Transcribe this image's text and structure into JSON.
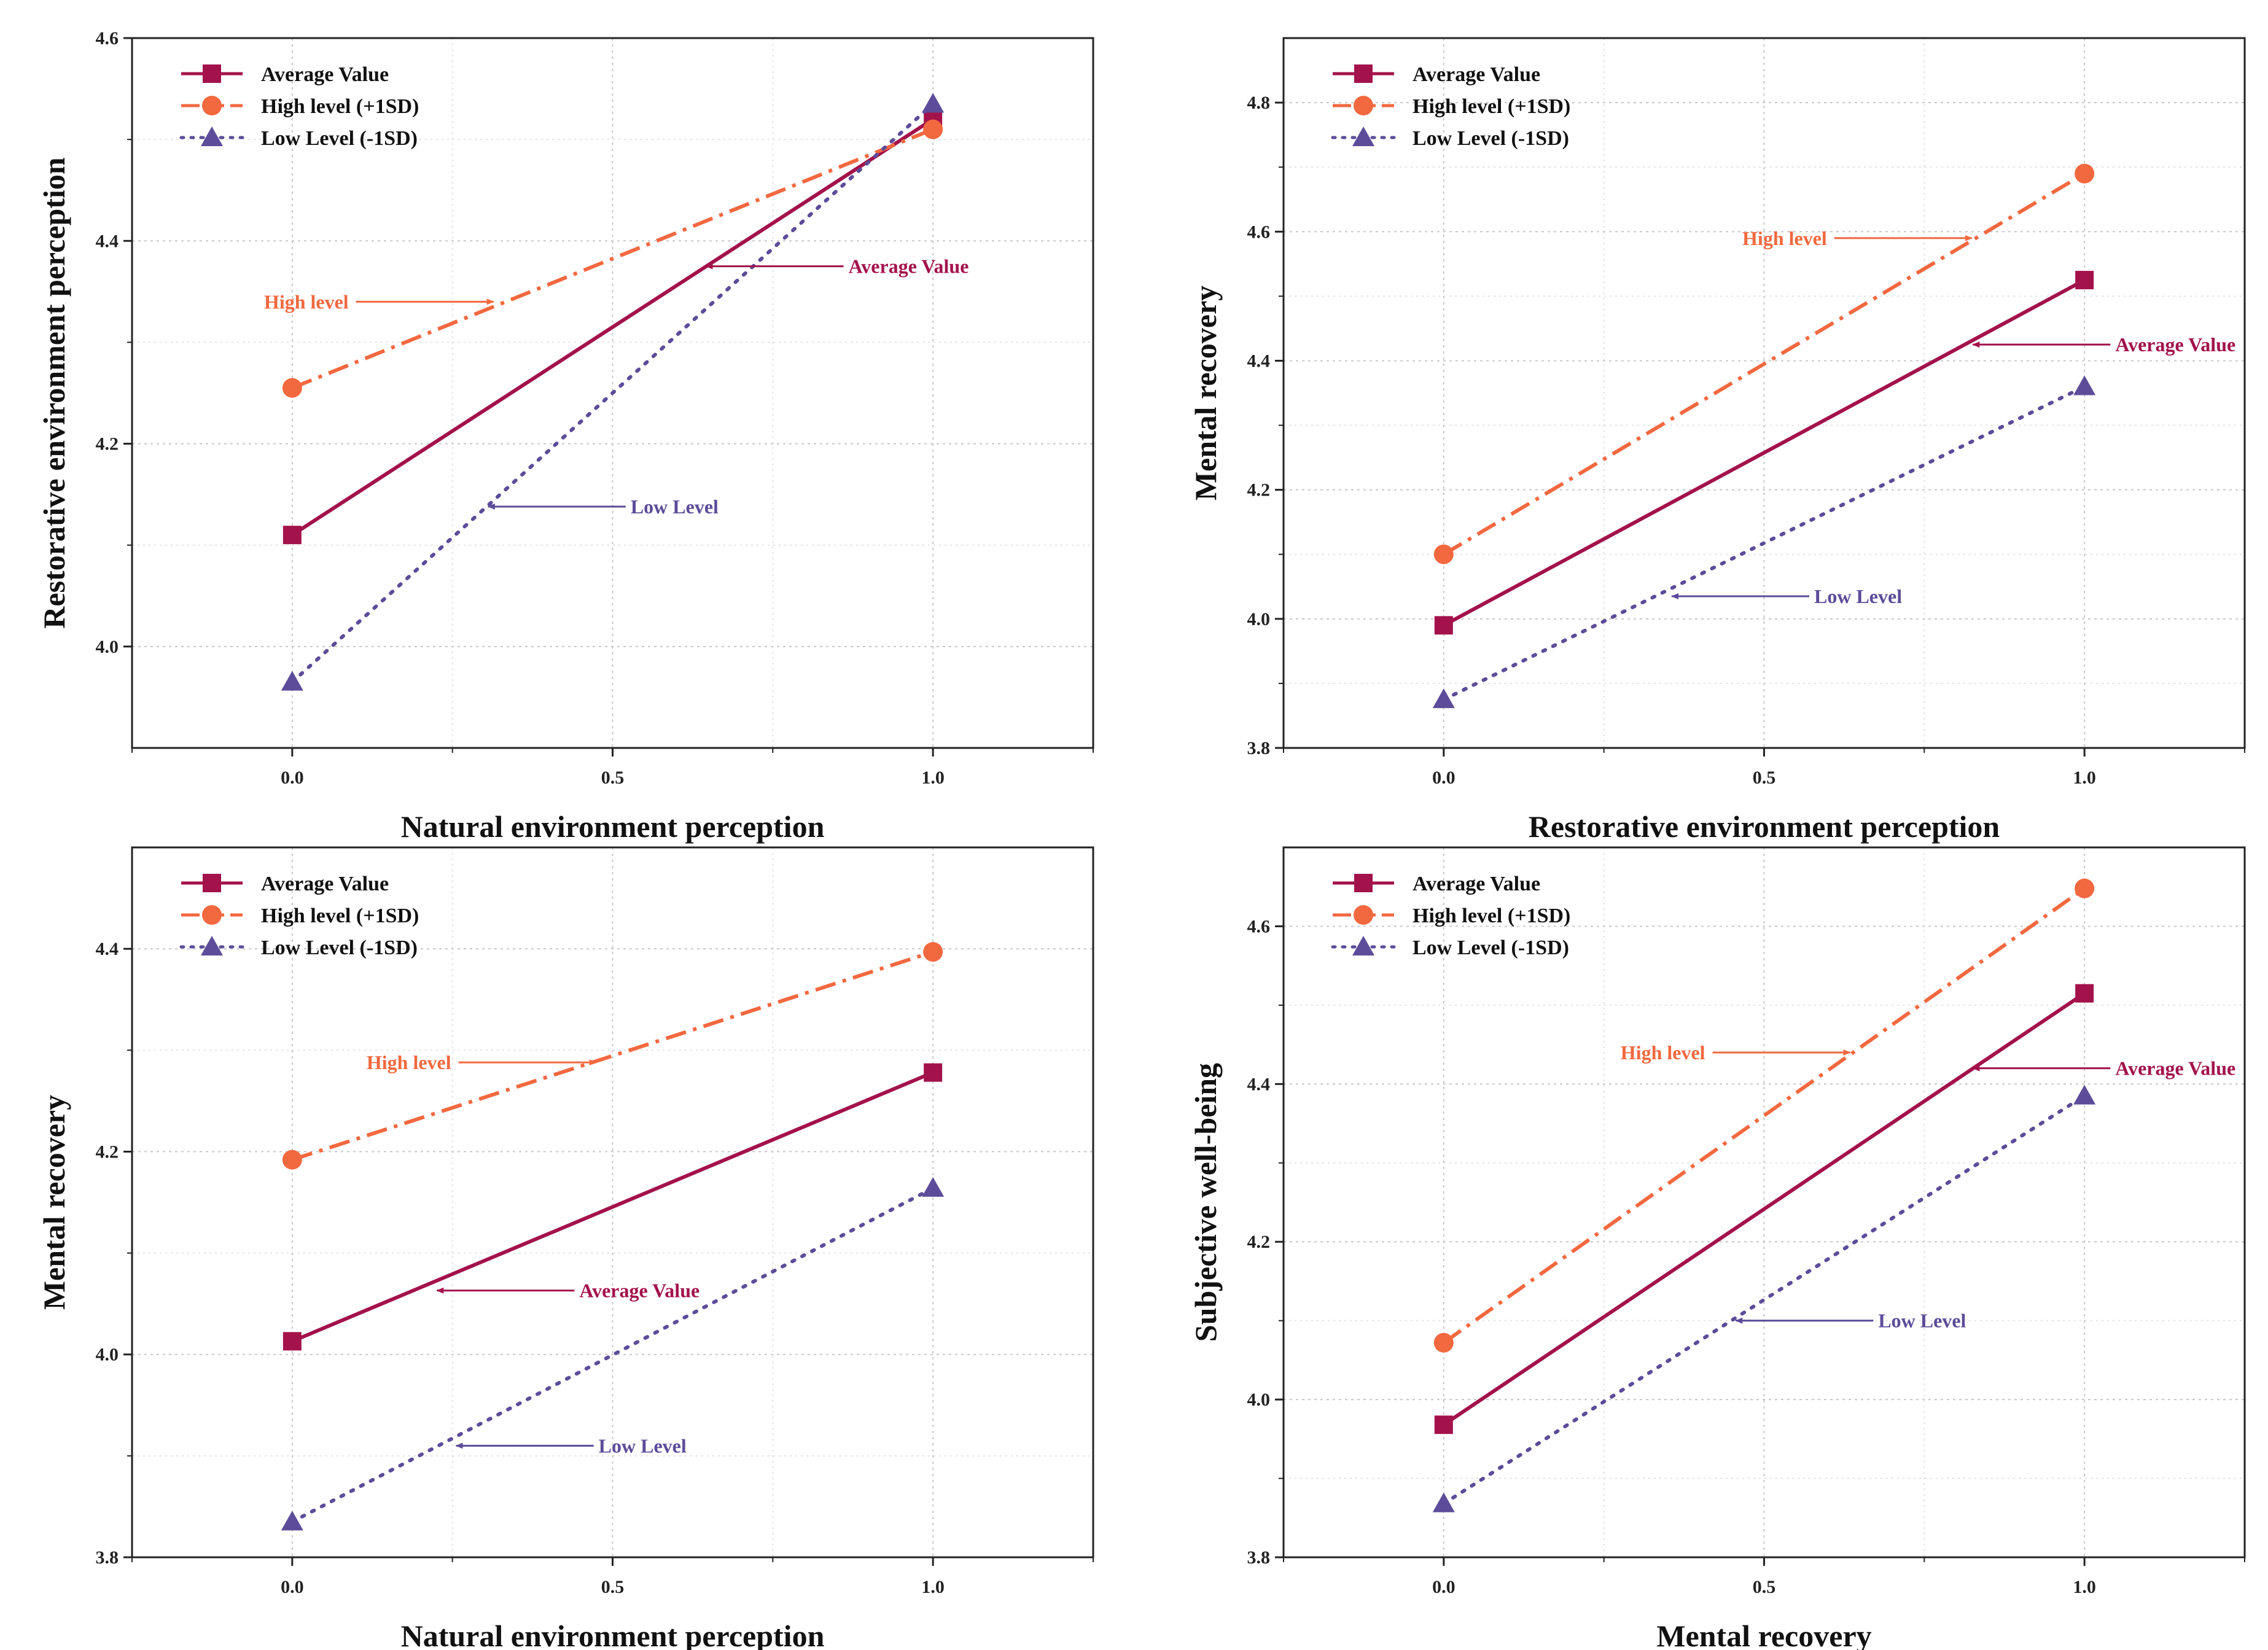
{
  "colors": {
    "average": "#a3124b",
    "high": "#f2683f",
    "low": "#5c4c99"
  },
  "chart_data": [
    {
      "type": "line",
      "xlabel": "Natural environment perception",
      "ylabel": "Restorative environment perception",
      "xlim": [
        -0.25,
        1.25
      ],
      "ylim": [
        3.9,
        4.6
      ],
      "x_ticks": [
        0.0,
        0.5,
        1.0
      ],
      "x_tick_labels": [
        "0.0",
        "0.5",
        "1.0"
      ],
      "y_ticks": [
        4.0,
        4.2,
        4.4,
        4.6
      ],
      "y_tick_labels": [
        "4.0",
        "4.2",
        "4.4",
        "4.6"
      ],
      "legend_position": "top-left",
      "x": [
        0,
        1
      ],
      "series": [
        {
          "key": "average",
          "name": "Average Value",
          "values": [
            4.11,
            4.52
          ]
        },
        {
          "key": "high",
          "name": "High  level (+1SD)",
          "values": [
            4.255,
            4.51
          ]
        },
        {
          "key": "low",
          "name": "Low Level (-1SD)",
          "values": [
            3.965,
            4.535
          ]
        }
      ],
      "annotations": [
        {
          "series": "high",
          "text": "High  level",
          "x": 0.32,
          "y": 4.34
        },
        {
          "series": "average",
          "text": "Average Value",
          "x": 0.64,
          "y": 4.375
        },
        {
          "series": "low",
          "text": "Low Level",
          "x": 0.3,
          "y": 4.138
        }
      ]
    },
    {
      "type": "line",
      "xlabel": "Restorative environment perception",
      "ylabel": "Mental recovery",
      "xlim": [
        -0.25,
        1.25
      ],
      "ylim": [
        3.8,
        4.9
      ],
      "x_ticks": [
        0.0,
        0.5,
        1.0
      ],
      "x_tick_labels": [
        "0.0",
        "0.5",
        "1.0"
      ],
      "y_ticks": [
        3.8,
        4.0,
        4.2,
        4.4,
        4.6,
        4.8
      ],
      "y_tick_labels": [
        "3.8",
        "4.0",
        "4.2",
        "4.4",
        "4.6",
        "4.8"
      ],
      "legend_position": "top-left",
      "x": [
        0,
        1
      ],
      "series": [
        {
          "key": "average",
          "name": "Average Value",
          "values": [
            3.99,
            4.525
          ]
        },
        {
          "key": "high",
          "name": "High  level (+1SD)",
          "values": [
            4.1,
            4.69
          ]
        },
        {
          "key": "low",
          "name": "Low Level (-1SD)",
          "values": [
            3.875,
            4.36
          ]
        }
      ],
      "annotations": [
        {
          "series": "high",
          "text": "High  level",
          "x": 0.83,
          "y": 4.59
        },
        {
          "series": "average",
          "text": "Average Value",
          "x": 0.82,
          "y": 4.425
        },
        {
          "series": "low",
          "text": "Low Level",
          "x": 0.35,
          "y": 4.035
        }
      ]
    },
    {
      "type": "line",
      "xlabel": "Natural environment perception",
      "ylabel": "Mental recovery",
      "xlim": [
        -0.25,
        1.25
      ],
      "ylim": [
        3.8,
        4.5
      ],
      "x_ticks": [
        0.0,
        0.5,
        1.0
      ],
      "x_tick_labels": [
        "0.0",
        "0.5",
        "1.0"
      ],
      "y_ticks": [
        3.8,
        4.0,
        4.2,
        4.4
      ],
      "y_tick_labels": [
        "3.8",
        "4.0",
        "4.2",
        "4.4"
      ],
      "legend_position": "top-left",
      "x": [
        0,
        1
      ],
      "series": [
        {
          "key": "average",
          "name": "Average Value",
          "values": [
            4.013,
            4.278
          ]
        },
        {
          "key": "high",
          "name": "High  level (+1SD)",
          "values": [
            4.192,
            4.397
          ]
        },
        {
          "key": "low",
          "name": "Low Level (-1SD)",
          "values": [
            3.835,
            4.164
          ]
        }
      ],
      "annotations": [
        {
          "series": "high",
          "text": "High  level",
          "x": 0.48,
          "y": 4.288
        },
        {
          "series": "average",
          "text": "Average Value",
          "x": 0.22,
          "y": 4.063
        },
        {
          "series": "low",
          "text": "Low Level",
          "x": 0.25,
          "y": 3.91
        }
      ]
    },
    {
      "type": "line",
      "xlabel": "Mental recovery",
      "ylabel": "Subjective well-being",
      "xlim": [
        -0.25,
        1.25
      ],
      "ylim": [
        3.8,
        4.7
      ],
      "x_ticks": [
        0.0,
        0.5,
        1.0
      ],
      "x_tick_labels": [
        "0.0",
        "0.5",
        "1.0"
      ],
      "y_ticks": [
        3.8,
        4.0,
        4.2,
        4.4,
        4.6
      ],
      "y_tick_labels": [
        "3.8",
        "4.0",
        "4.2",
        "4.4",
        "4.6"
      ],
      "legend_position": "top-left",
      "x": [
        0,
        1
      ],
      "series": [
        {
          "key": "average",
          "name": "Average Value",
          "values": [
            3.968,
            4.515
          ]
        },
        {
          "key": "high",
          "name": "High  level (+1SD)",
          "values": [
            4.072,
            4.648
          ]
        },
        {
          "key": "low",
          "name": "Low Level (-1SD)",
          "values": [
            3.868,
            4.385
          ]
        }
      ],
      "annotations": [
        {
          "series": "high",
          "text": "High  level",
          "x": 0.64,
          "y": 4.44
        },
        {
          "series": "average",
          "text": "Average Value",
          "x": 0.82,
          "y": 4.42
        },
        {
          "series": "low",
          "text": "Low Level",
          "x": 0.45,
          "y": 4.1
        }
      ]
    }
  ]
}
